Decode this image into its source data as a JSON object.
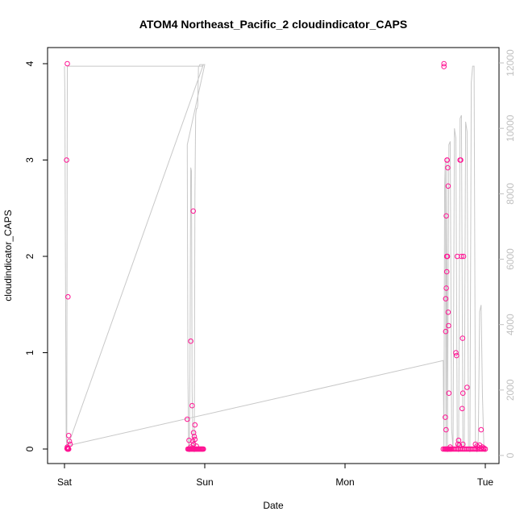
{
  "chart_data": {
    "type": "scatter",
    "title": "ATOM4 Northeast_Pacific_2 cloudindicator_CAPS",
    "xlabel": "Date",
    "ylabel": "cloudindicator_CAPS",
    "x_ticks": [
      "Sat",
      "Sun",
      "Mon",
      "Tue"
    ],
    "y_ticks": [
      "0",
      "1",
      "2",
      "3",
      "4"
    ],
    "y2_ticks": [
      "0",
      "2000",
      "4000",
      "6000",
      "8000",
      "10000",
      "12000"
    ],
    "ylim": [
      -0.15,
      4.15
    ],
    "y2lim": [
      -300,
      12400
    ],
    "grid": false,
    "colors": {
      "points": "#ff1493",
      "line": "#c8c8c8",
      "right_axis": "#c0c0c0",
      "frame": "#000000"
    },
    "points_series": {
      "name": "cloudindicator_CAPS",
      "x_day": [
        0.02,
        0.015,
        0.025,
        0.03,
        0.035,
        0.04,
        0.02,
        0.022,
        0.018,
        0.021,
        0.023,
        0.025,
        0.028,
        0.03,
        0.88,
        0.885,
        0.89,
        0.895,
        0.9,
        0.905,
        0.91,
        0.915,
        0.92,
        0.925,
        0.93,
        0.935,
        0.94,
        0.945,
        0.95,
        0.955,
        0.96,
        0.965,
        0.97,
        0.975,
        0.98,
        0.985,
        0.99,
        0.875,
        0.888,
        0.9,
        0.91,
        0.918,
        0.92,
        0.925,
        0.93,
        0.915,
        0.92,
        0.93,
        0.94,
        0.9,
        0.91,
        2.7,
        2.71,
        2.715,
        2.72,
        2.725,
        2.73,
        2.735,
        2.74,
        2.745,
        2.75,
        2.755,
        2.76,
        2.77,
        2.78,
        2.79,
        2.8,
        2.81,
        2.82,
        2.83,
        2.84,
        2.85,
        2.86,
        2.87,
        2.88,
        2.89,
        2.9,
        2.91,
        2.92,
        2.93,
        2.94,
        2.95,
        2.96,
        2.97,
        2.98,
        2.99,
        3.0,
        2.705,
        2.705,
        2.715,
        2.718,
        2.718,
        2.72,
        2.722,
        2.722,
        2.725,
        2.725,
        2.727,
        2.728,
        2.73,
        2.732,
        2.735,
        2.735,
        2.738,
        2.74,
        2.75,
        2.79,
        2.795,
        2.8,
        2.82,
        2.825,
        2.83,
        2.835,
        2.838,
        2.84,
        2.84,
        2.845,
        2.87,
        2.93,
        2.94,
        2.95,
        2.96,
        2.97,
        2.98,
        2.99,
        2.805,
        2.81,
        2.815
      ],
      "y": [
        4,
        3,
        1.58,
        0.14,
        0.08,
        0.05,
        0.02,
        0.01,
        0.005,
        0,
        0,
        0,
        0,
        0,
        0,
        0,
        0,
        0,
        0,
        0,
        0,
        0,
        0,
        0,
        0,
        0,
        0,
        0,
        0,
        0,
        0,
        0,
        0,
        0,
        0,
        0,
        0,
        0.31,
        0.09,
        1.12,
        0.45,
        2.47,
        0.17,
        0.13,
        0.25,
        0.08,
        0.05,
        0.1,
        0.03,
        0.02,
        0.01,
        0,
        0,
        0,
        0,
        0,
        0,
        0,
        0,
        0,
        0,
        0,
        0,
        0,
        0,
        0,
        0,
        0,
        0,
        0,
        0,
        0,
        0,
        0,
        0,
        0,
        0,
        0,
        0,
        0,
        0,
        0,
        0,
        0,
        0,
        0,
        0,
        4,
        3.97,
        0.33,
        1.56,
        1.22,
        0.2,
        2.42,
        1.67,
        1.84,
        2.0,
        3.0,
        3.0,
        2.0,
        2.92,
        1.42,
        2.73,
        1.28,
        0.58,
        0.02,
        1.0,
        0.97,
        2.0,
        3.0,
        3.0,
        2.0,
        0.42,
        1.15,
        0.58,
        0.05,
        2.0,
        0.64,
        0.05,
        0.03,
        0.02,
        0.04,
        0.2,
        0.02,
        0.01,
        0.05,
        0.09,
        0.04
      ]
    },
    "line_series": {
      "name": "",
      "axis": "right",
      "x_day": [
        0.0,
        0.003,
        0.006,
        0.01,
        0.012,
        0.016,
        0.02,
        0.025,
        0.9,
        0.92,
        0.93,
        0.95,
        0.97,
        0.98,
        0.99,
        0.995,
        1.0,
        0.875,
        0.877,
        0.88,
        0.885,
        0.89,
        0.895,
        0.9,
        0.905,
        0.91,
        0.915,
        0.92,
        0.925,
        0.93,
        0.935,
        0.94,
        0.945,
        0.95,
        0.955,
        0.96,
        0.965,
        0.97,
        0.975,
        0.98,
        0.985,
        0.99,
        0.025,
        2.7,
        2.705,
        2.71,
        2.715,
        2.72,
        2.725,
        2.73,
        2.74,
        2.75,
        2.76,
        2.77,
        2.78,
        2.79,
        2.8,
        2.81,
        2.82,
        2.83,
        2.84,
        2.85,
        2.86,
        2.87,
        2.88,
        2.89,
        2.9,
        2.91,
        2.92,
        2.93,
        2.94,
        2.95,
        2.96,
        2.97,
        2.98,
        2.99,
        3.0
      ],
      "y": [
        11900,
        11000,
        7000,
        3000,
        600,
        300,
        11900,
        11900,
        11900,
        11900,
        11900,
        11900,
        11900,
        11900,
        11950,
        11950,
        11950,
        9500,
        6500,
        2500,
        200,
        100,
        3000,
        8800,
        8700,
        2000,
        500,
        300,
        100,
        8000,
        10400,
        10600,
        10600,
        10700,
        11900,
        11900,
        11950,
        11950,
        11950,
        11950,
        11950,
        11950,
        300,
        2900,
        200,
        8200,
        9000,
        200,
        9100,
        100,
        9500,
        9600,
        800,
        200,
        10000,
        9700,
        500,
        100,
        10300,
        10400,
        200,
        300,
        10200,
        9900,
        300,
        100,
        11400,
        11900,
        11900,
        400,
        100,
        500,
        4400,
        4600,
        1800,
        200,
        100
      ]
    }
  },
  "chart_title": "ATOM4 Northeast_Pacific_2 cloudindicator_CAPS",
  "x_axis_label": "Date",
  "y_axis_label": "cloudindicator_CAPS"
}
